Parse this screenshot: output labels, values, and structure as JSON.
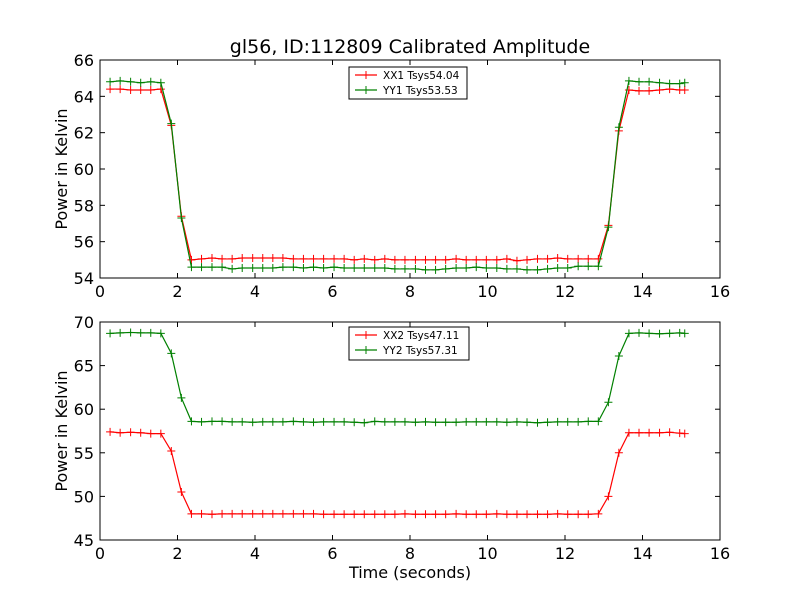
{
  "figure": {
    "title": "gl56, ID:112809 Calibrated Amplitude",
    "xlabel": "Time (seconds)"
  },
  "chart_data": [
    {
      "type": "line",
      "title": "gl56, ID:112809 Calibrated Amplitude",
      "xlabel": "",
      "ylabel": "Power in Kelvin",
      "xlim": [
        0,
        16
      ],
      "ylim": [
        54,
        66
      ],
      "xticks": [
        0,
        2,
        4,
        6,
        8,
        10,
        12,
        14,
        16
      ],
      "yticks": [
        54,
        56,
        58,
        60,
        62,
        64,
        66
      ],
      "legend_position": "top-center",
      "x": [
        0.26,
        0.52,
        0.79,
        1.05,
        1.31,
        1.57,
        1.84,
        2.1,
        2.36,
        2.62,
        2.89,
        3.15,
        3.41,
        3.67,
        3.94,
        4.2,
        4.46,
        4.72,
        4.99,
        5.25,
        5.51,
        5.77,
        6.04,
        6.3,
        6.56,
        6.82,
        7.09,
        7.35,
        7.61,
        7.87,
        8.14,
        8.4,
        8.66,
        8.92,
        9.19,
        9.45,
        9.71,
        9.97,
        10.24,
        10.5,
        10.76,
        11.02,
        11.29,
        11.55,
        11.81,
        12.07,
        12.34,
        12.6,
        12.86,
        13.12,
        13.39,
        13.65,
        13.91,
        14.17,
        14.44,
        14.7,
        14.96,
        15.09
      ],
      "series": [
        {
          "name": "XX1 Tsys54.04",
          "color": "#ff0000",
          "values": [
            64.4,
            64.4,
            64.35,
            64.35,
            64.35,
            64.4,
            62.4,
            57.4,
            55.0,
            55.05,
            55.1,
            55.05,
            55.05,
            55.1,
            55.1,
            55.1,
            55.1,
            55.1,
            55.05,
            55.05,
            55.05,
            55.05,
            55.05,
            55.05,
            55.0,
            55.05,
            55.0,
            55.05,
            55.0,
            55.0,
            55.0,
            55.0,
            55.0,
            55.0,
            55.05,
            55.0,
            55.0,
            55.0,
            55.0,
            55.05,
            54.95,
            55.0,
            55.05,
            55.05,
            55.1,
            55.05,
            55.05,
            55.05,
            55.05,
            56.9,
            62.1,
            64.35,
            64.3,
            64.3,
            64.35,
            64.4,
            64.35,
            64.35
          ]
        },
        {
          "name": "YY1 Tsys53.53",
          "color": "#008000",
          "values": [
            64.8,
            64.85,
            64.8,
            64.75,
            64.8,
            64.75,
            62.5,
            57.3,
            54.6,
            54.6,
            54.6,
            54.6,
            54.5,
            54.55,
            54.55,
            54.55,
            54.55,
            54.6,
            54.6,
            54.55,
            54.6,
            54.55,
            54.6,
            54.55,
            54.55,
            54.55,
            54.55,
            54.55,
            54.5,
            54.5,
            54.5,
            54.45,
            54.45,
            54.5,
            54.55,
            54.55,
            54.6,
            54.55,
            54.55,
            54.5,
            54.5,
            54.45,
            54.45,
            54.5,
            54.55,
            54.55,
            54.65,
            54.65,
            54.65,
            56.8,
            62.3,
            64.85,
            64.8,
            64.8,
            64.75,
            64.7,
            64.7,
            64.75
          ]
        }
      ]
    },
    {
      "type": "line",
      "title": "",
      "xlabel": "Time (seconds)",
      "ylabel": "Power in Kelvin",
      "xlim": [
        0,
        16
      ],
      "ylim": [
        45,
        70
      ],
      "xticks": [
        0,
        2,
        4,
        6,
        8,
        10,
        12,
        14,
        16
      ],
      "yticks": [
        45,
        50,
        55,
        60,
        65,
        70
      ],
      "legend_position": "top-center",
      "x": [
        0.26,
        0.52,
        0.79,
        1.05,
        1.31,
        1.57,
        1.84,
        2.1,
        2.36,
        2.62,
        2.89,
        3.15,
        3.41,
        3.67,
        3.94,
        4.2,
        4.46,
        4.72,
        4.99,
        5.25,
        5.51,
        5.77,
        6.04,
        6.3,
        6.56,
        6.82,
        7.09,
        7.35,
        7.61,
        7.87,
        8.14,
        8.4,
        8.66,
        8.92,
        9.19,
        9.45,
        9.71,
        9.97,
        10.24,
        10.5,
        10.76,
        11.02,
        11.29,
        11.55,
        11.81,
        12.07,
        12.34,
        12.6,
        12.86,
        13.12,
        13.39,
        13.65,
        13.91,
        14.17,
        14.44,
        14.7,
        14.96,
        15.09
      ],
      "series": [
        {
          "name": "XX2 Tsys47.11",
          "color": "#ff0000",
          "values": [
            57.4,
            57.3,
            57.35,
            57.3,
            57.2,
            57.2,
            55.2,
            50.5,
            48.0,
            48.0,
            47.95,
            48.0,
            48.0,
            48.0,
            48.0,
            48.0,
            48.0,
            48.0,
            48.0,
            48.0,
            48.0,
            47.95,
            47.95,
            47.95,
            47.95,
            47.95,
            47.95,
            47.95,
            47.95,
            48.0,
            47.95,
            47.95,
            47.95,
            47.95,
            48.0,
            47.95,
            47.95,
            47.95,
            48.0,
            47.95,
            47.95,
            47.95,
            47.95,
            47.95,
            48.0,
            47.95,
            47.95,
            47.95,
            48.0,
            50.0,
            55.0,
            57.3,
            57.3,
            57.3,
            57.3,
            57.35,
            57.25,
            57.2
          ]
        },
        {
          "name": "YY2 Tsys57.31",
          "color": "#008000",
          "values": [
            68.7,
            68.75,
            68.8,
            68.75,
            68.75,
            68.7,
            66.4,
            61.3,
            58.6,
            58.55,
            58.6,
            58.6,
            58.55,
            58.55,
            58.5,
            58.55,
            58.55,
            58.55,
            58.6,
            58.55,
            58.5,
            58.55,
            58.55,
            58.55,
            58.5,
            58.45,
            58.6,
            58.55,
            58.55,
            58.55,
            58.5,
            58.55,
            58.5,
            58.5,
            58.5,
            58.55,
            58.55,
            58.55,
            58.55,
            58.5,
            58.55,
            58.5,
            58.45,
            58.5,
            58.55,
            58.55,
            58.55,
            58.6,
            58.6,
            60.8,
            66.1,
            68.7,
            68.75,
            68.7,
            68.65,
            68.7,
            68.75,
            68.7
          ]
        }
      ]
    }
  ]
}
